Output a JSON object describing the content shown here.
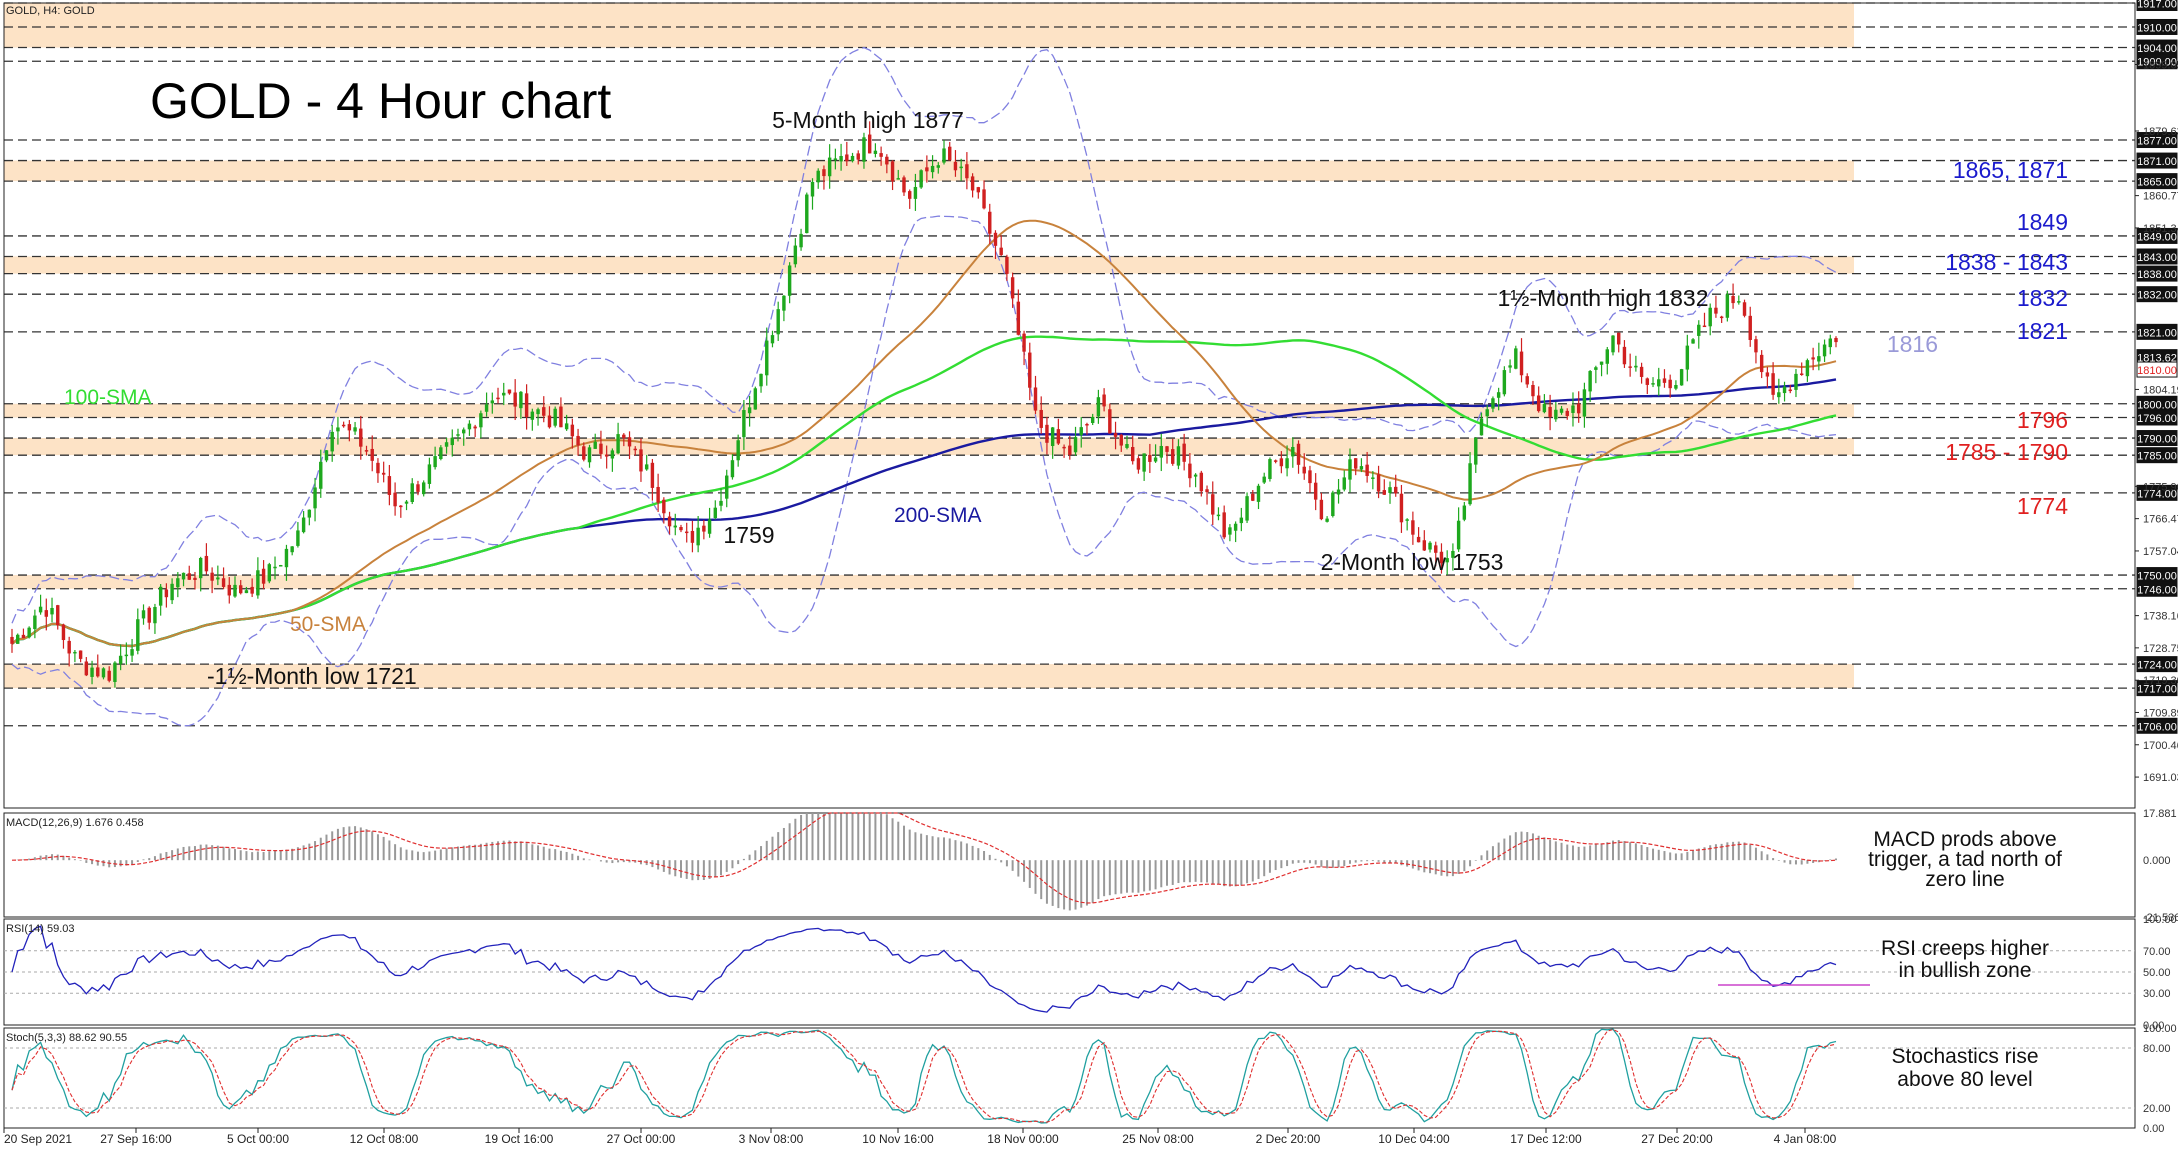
{
  "window": {
    "corner_label": "GOLD, H4:  GOLD"
  },
  "chart_data": {
    "type": "candlestick",
    "title": "GOLD - 4 Hour chart",
    "symbol": "GOLD",
    "timeframe": "H4",
    "ylim": [
      1682,
      1917
    ],
    "x_ticks": [
      "20 Sep 2021",
      "27 Sep 16:00",
      "5 Oct 00:00",
      "12 Oct 08:00",
      "19 Oct 16:00",
      "27 Oct 00:00",
      "3 Nov 08:00",
      "10 Nov 16:00",
      "18 Nov 00:00",
      "25 Nov 08:00",
      "2 Dec 20:00",
      "10 Dec 04:00",
      "17 Dec 12:00",
      "27 Dec 20:00",
      "4 Jan 08:00"
    ],
    "y_ticks": [
      "1899.05",
      "1879.63",
      "1860.77",
      "1851.34",
      "1804.19",
      "1775.90",
      "1766.47",
      "1757.04",
      "1738.16",
      "1728.75",
      "1719.30",
      "1709.89",
      "1700.46",
      "1691.03"
    ],
    "price_tags": [
      "1917.00",
      "1910.00",
      "1904.00",
      "1900.00",
      "1877.00",
      "1871.00",
      "1865.00",
      "1849.00",
      "1843.00",
      "1838.00",
      "1832.00",
      "1821.00",
      "1813.62",
      "1810.00",
      "1800.00",
      "1796.00",
      "1790.00",
      "1785.00",
      "1774.00",
      "1750.00",
      "1746.00",
      "1724.00",
      "1717.00",
      "1706.00"
    ],
    "current_price": "1810.00",
    "price_anchors": [
      1730,
      1742,
      1725,
      1721,
      1735,
      1748,
      1752,
      1745,
      1750,
      1762,
      1795,
      1788,
      1770,
      1780,
      1790,
      1803,
      1800,
      1795,
      1785,
      1790,
      1778,
      1759,
      1770,
      1800,
      1830,
      1865,
      1872,
      1877,
      1860,
      1873,
      1863,
      1840,
      1795,
      1785,
      1800,
      1782,
      1788,
      1780,
      1760,
      1778,
      1788,
      1768,
      1784,
      1775,
      1760,
      1753,
      1800,
      1813,
      1795,
      1800,
      1820,
      1805,
      1808,
      1825,
      1832,
      1800,
      1812,
      1820
    ],
    "zones": [
      {
        "from": 1904,
        "to": 1917
      },
      {
        "from": 1865,
        "to": 1871
      },
      {
        "from": 1838,
        "to": 1843
      },
      {
        "from": 1796,
        "to": 1800
      },
      {
        "from": 1785,
        "to": 1790
      },
      {
        "from": 1746,
        "to": 1750
      },
      {
        "from": 1717,
        "to": 1724
      }
    ],
    "dashed_levels": [
      1917,
      1910,
      1904,
      1900,
      1877,
      1871,
      1865,
      1849,
      1843,
      1838,
      1832,
      1821,
      1800,
      1796,
      1790,
      1785,
      1774,
      1750,
      1746,
      1724,
      1717,
      1706
    ],
    "annotations": [
      {
        "text": "5-Month high 1877",
        "price": 1877
      },
      {
        "text": "1½-Month high 1832",
        "price": 1832
      },
      {
        "text": "2-Month low 1753",
        "price": 1753
      },
      {
        "text": "1759",
        "price": 1759
      },
      {
        "text": "-1½-Month low 1721",
        "price": 1721
      }
    ],
    "level_labels": [
      {
        "text": "1865, 1871",
        "color": "#1a1acc"
      },
      {
        "text": "1849",
        "color": "#1a1acc"
      },
      {
        "text": "1838 - 1843",
        "color": "#1a1acc"
      },
      {
        "text": "1832",
        "color": "#1a1acc"
      },
      {
        "text": "1821",
        "color": "#1a1acc"
      },
      {
        "text": "1816",
        "color": "#9a9ad8"
      },
      {
        "text": "1796",
        "color": "#e02020"
      },
      {
        "text": "1785 - 1790",
        "color": "#e02020"
      },
      {
        "text": "1774",
        "color": "#e02020"
      }
    ],
    "indicators": [
      {
        "name": "100-SMA",
        "color": "#33dd33"
      },
      {
        "name": "50-SMA",
        "color": "#c8823c"
      },
      {
        "name": "200-SMA",
        "color": "#1a1aa0"
      }
    ],
    "colors": {
      "up": "#1ea81e",
      "down": "#d02020",
      "zone": "#fde3c6",
      "bands": "#8080e0",
      "sma50": "#c8823c",
      "sma100": "#33dd33",
      "sma200": "#1a1aa0"
    },
    "panels": {
      "macd": {
        "header": "MACD(12,26,9) 1.676 0.458",
        "ticks": [
          "17.881",
          "0.000",
          "-21.536"
        ],
        "ylim": [
          -21.536,
          17.881
        ],
        "note": "MACD prods above trigger, a tad north of zero line"
      },
      "rsi": {
        "header": "RSI(14) 59.03",
        "ticks": [
          "100.00",
          "70.00",
          "50.00",
          "30.00",
          "0.00"
        ],
        "ylim": [
          0,
          100
        ],
        "note": "RSI creeps higher in bullish zone"
      },
      "stoch": {
        "header": "Stoch(5,3,3) 88.62 90.55",
        "ticks": [
          "100.00",
          "80.00",
          "20.00",
          "0.00"
        ],
        "ylim": [
          0,
          100
        ],
        "note": "Stochastics rise above 80 level"
      }
    }
  }
}
